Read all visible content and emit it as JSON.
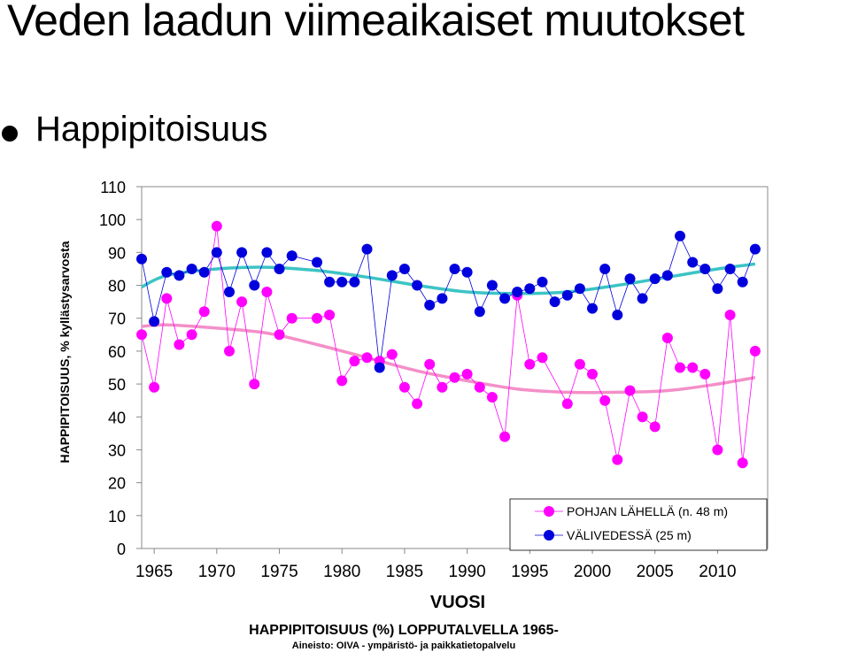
{
  "slide": {
    "title": "Veden laadun viimeaikaiset muutokset",
    "bullet": "Happipitoisuus"
  },
  "chart_data": {
    "type": "line",
    "title": "HAPPIPITOISUUS (%) LOPPUTALVELLA 1965-",
    "source": "Aineisto: OIVA - ympäristö- ja paikkatietopalvelu",
    "xlabel": "VUOSI",
    "ylabel": "HAPPIPITOISUUS, % kyllästysarvosta",
    "xlim": [
      1964,
      2014
    ],
    "ylim": [
      0,
      110
    ],
    "x_ticks": [
      1965,
      1970,
      1975,
      1980,
      1985,
      1990,
      1995,
      2000,
      2005,
      2010
    ],
    "y_ticks": [
      0,
      10,
      20,
      30,
      40,
      50,
      60,
      70,
      80,
      90,
      100,
      110
    ],
    "grid": false,
    "legend": "bottom-right",
    "series": [
      {
        "name": "POHJAN LÄHELLÄ (n. 48 m)",
        "color": "#ff00ff",
        "trend_color": "#f48fc8",
        "points": [
          [
            1964,
            65
          ],
          [
            1965,
            49
          ],
          [
            1966,
            76
          ],
          [
            1967,
            62
          ],
          [
            1968,
            65
          ],
          [
            1969,
            72
          ],
          [
            1970,
            98
          ],
          [
            1971,
            60
          ],
          [
            1972,
            75
          ],
          [
            1973,
            50
          ],
          [
            1974,
            78
          ],
          [
            1975,
            65
          ],
          [
            1976,
            70
          ],
          [
            1978,
            70
          ],
          [
            1979,
            71
          ],
          [
            1980,
            51
          ],
          [
            1981,
            57
          ],
          [
            1982,
            58
          ],
          [
            1983,
            57
          ],
          [
            1984,
            59
          ],
          [
            1985,
            49
          ],
          [
            1986,
            44
          ],
          [
            1987,
            56
          ],
          [
            1988,
            49
          ],
          [
            1989,
            52
          ],
          [
            1990,
            53
          ],
          [
            1991,
            49
          ],
          [
            1992,
            46
          ],
          [
            1993,
            34
          ],
          [
            1994,
            77
          ],
          [
            1995,
            56
          ],
          [
            1996,
            58
          ],
          [
            1998,
            44
          ],
          [
            1999,
            56
          ],
          [
            2000,
            53
          ],
          [
            2001,
            45
          ],
          [
            2002,
            27
          ],
          [
            2003,
            48
          ],
          [
            2004,
            40
          ],
          [
            2005,
            37
          ],
          [
            2006,
            64
          ],
          [
            2007,
            55
          ],
          [
            2008,
            55
          ],
          [
            2009,
            53
          ],
          [
            2010,
            30
          ],
          [
            2011,
            71
          ],
          [
            2012,
            26
          ],
          [
            2013,
            60
          ]
        ],
        "trend": [
          [
            1964,
            67.5
          ],
          [
            1966,
            68
          ],
          [
            1970,
            67
          ],
          [
            1974,
            65.5
          ],
          [
            1978,
            62
          ],
          [
            1982,
            58
          ],
          [
            1986,
            54
          ],
          [
            1990,
            51
          ],
          [
            1994,
            48.5
          ],
          [
            1998,
            47.5
          ],
          [
            2002,
            47.5
          ],
          [
            2006,
            48
          ],
          [
            2010,
            50
          ],
          [
            2013,
            52
          ]
        ]
      },
      {
        "name": "VÄLIVEDESSÄ (25 m)",
        "color": "#0000dd",
        "trend_color": "#3cc4c4",
        "points": [
          [
            1964,
            88
          ],
          [
            1965,
            69
          ],
          [
            1966,
            84
          ],
          [
            1967,
            83
          ],
          [
            1968,
            85
          ],
          [
            1969,
            84
          ],
          [
            1970,
            90
          ],
          [
            1971,
            78
          ],
          [
            1972,
            90
          ],
          [
            1973,
            80
          ],
          [
            1974,
            90
          ],
          [
            1975,
            85
          ],
          [
            1976,
            89
          ],
          [
            1978,
            87
          ],
          [
            1979,
            81
          ],
          [
            1980,
            81
          ],
          [
            1981,
            81
          ],
          [
            1982,
            91
          ],
          [
            1983,
            55
          ],
          [
            1984,
            83
          ],
          [
            1985,
            85
          ],
          [
            1986,
            80
          ],
          [
            1987,
            74
          ],
          [
            1988,
            76
          ],
          [
            1989,
            85
          ],
          [
            1990,
            84
          ],
          [
            1991,
            72
          ],
          [
            1992,
            80
          ],
          [
            1993,
            76
          ],
          [
            1994,
            78
          ],
          [
            1995,
            79
          ],
          [
            1996,
            81
          ],
          [
            1997,
            75
          ],
          [
            1998,
            77
          ],
          [
            1999,
            79
          ],
          [
            2000,
            73
          ],
          [
            2001,
            85
          ],
          [
            2002,
            71
          ],
          [
            2003,
            82
          ],
          [
            2004,
            76
          ],
          [
            2005,
            82
          ],
          [
            2006,
            83
          ],
          [
            2007,
            95
          ],
          [
            2008,
            87
          ],
          [
            2009,
            85
          ],
          [
            2010,
            79
          ],
          [
            2011,
            85
          ],
          [
            2012,
            81
          ],
          [
            2013,
            91
          ]
        ],
        "trend": [
          [
            1964,
            79.5
          ],
          [
            1966,
            83
          ],
          [
            1970,
            85
          ],
          [
            1974,
            85.5
          ],
          [
            1978,
            84.5
          ],
          [
            1982,
            82.5
          ],
          [
            1986,
            80
          ],
          [
            1990,
            78
          ],
          [
            1994,
            77.5
          ],
          [
            1998,
            78
          ],
          [
            2002,
            80
          ],
          [
            2006,
            82.5
          ],
          [
            2010,
            85
          ],
          [
            2013,
            86.5
          ]
        ]
      }
    ]
  }
}
